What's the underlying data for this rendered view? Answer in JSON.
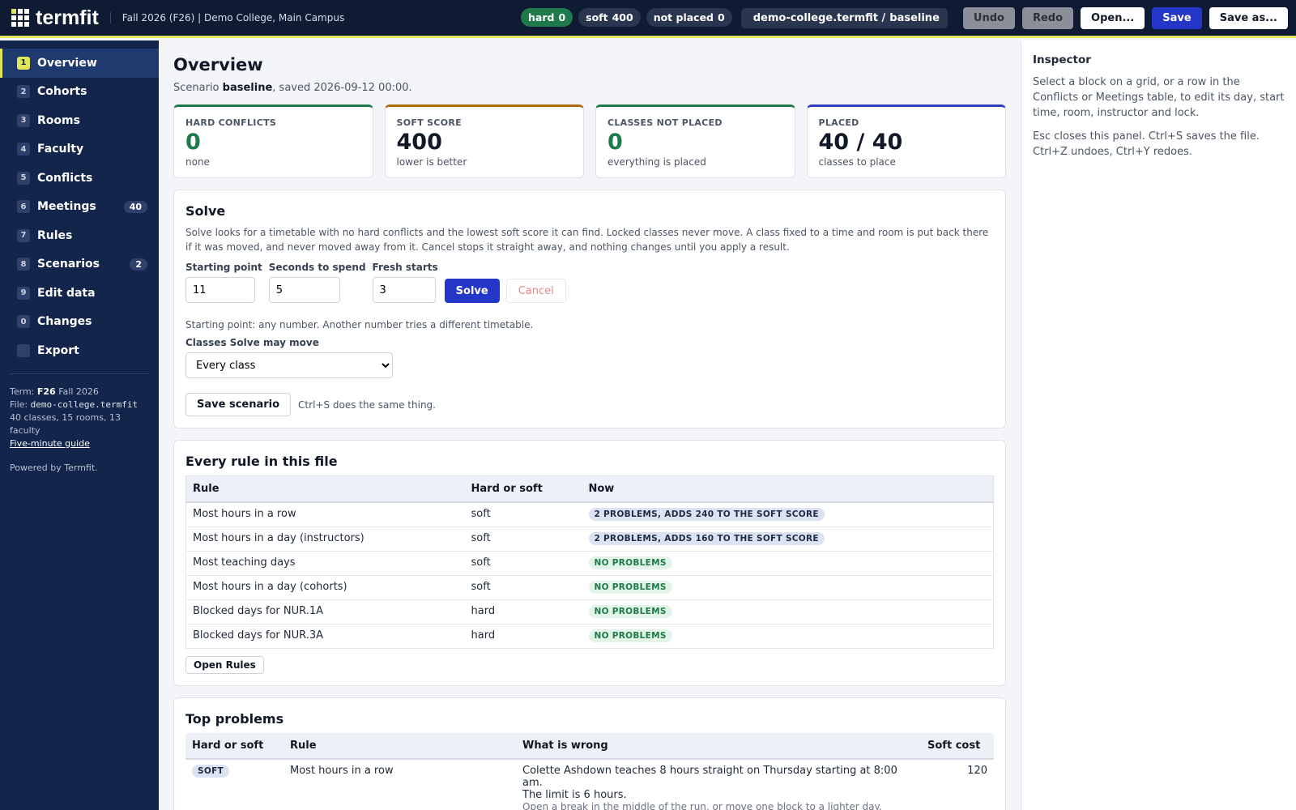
{
  "header": {
    "brand": "termfit",
    "term": "Fall 2026 (F26) | Demo College, Main Campus",
    "pills": [
      {
        "label": "hard",
        "value": "0",
        "color": "#1e7a4a"
      },
      {
        "label": "soft",
        "value": "400",
        "color": "#2a3550"
      },
      {
        "label": "not placed",
        "value": "0",
        "color": "#2a3550"
      }
    ],
    "file": "demo-college.termfit /",
    "scenario": "baseline",
    "buttons": [
      {
        "label": "Undo",
        "bg": "#8a8f99",
        "fg": "#2b2f38"
      },
      {
        "label": "Redo",
        "bg": "#8a8f99",
        "fg": "#2b2f38"
      },
      {
        "label": "Open...",
        "bg": "#ffffff",
        "fg": "#111827"
      },
      {
        "label": "Save",
        "bg": "#2437c9",
        "fg": "#ffffff"
      },
      {
        "label": "Save as...",
        "bg": "#ffffff",
        "fg": "#111827"
      }
    ]
  },
  "sidebar": {
    "nav": [
      {
        "key": "1",
        "label": "Overview",
        "active": true
      },
      {
        "key": "2",
        "label": "Cohorts"
      },
      {
        "key": "3",
        "label": "Rooms"
      },
      {
        "key": "4",
        "label": "Faculty"
      },
      {
        "key": "5",
        "label": "Conflicts"
      },
      {
        "key": "6",
        "label": "Meetings",
        "count": "40"
      },
      {
        "key": "7",
        "label": "Rules"
      },
      {
        "key": "8",
        "label": "Scenarios",
        "count": "2"
      },
      {
        "key": "9",
        "label": "Edit data"
      },
      {
        "key": "0",
        "label": "Changes"
      },
      {
        "label": "Export"
      }
    ],
    "term": [
      "Term:",
      "F26",
      "Fall 2026"
    ],
    "file": [
      "File:",
      "demo-college.termfit"
    ],
    "summary": "40 classes, 15 rooms, 13 faculty",
    "guide": "Five-minute guide",
    "powered": "Powered by Termfit."
  },
  "main": {
    "title": "Overview",
    "subtitle": [
      "Scenario ",
      "baseline",
      ", saved 2026-09-12 00:00."
    ],
    "cards": [
      {
        "label": "HARD CONFLICTS",
        "value": "0",
        "note": "none",
        "color": "#1e7a4a",
        "value_color": "#1e7a4a"
      },
      {
        "label": "SOFT SCORE",
        "value": "400",
        "note": "lower is better",
        "color": "#b06a10",
        "value_color": "#111827"
      },
      {
        "label": "CLASSES NOT PLACED",
        "value": "0",
        "note": "everything is placed",
        "color": "#1e7a4a",
        "value_color": "#1e7a4a"
      },
      {
        "label": "PLACED",
        "value": "40 / 40",
        "note": "classes to place",
        "color": "#2a3fbf",
        "value_color": "#111827"
      }
    ],
    "solve": {
      "title": "Solve",
      "description": "Solve looks for a timetable with no hard conflicts and the lowest soft score it can find. Locked classes never move. A class fixed to a time and room is put back there if it was moved, and never moved away from it. Cancel stops it straight away, and nothing changes until you apply a result.",
      "fields": [
        {
          "label": "Starting point",
          "value": "11"
        },
        {
          "label": "Seconds to spend",
          "value": "5"
        },
        {
          "label": "Fresh starts",
          "value": "3"
        }
      ],
      "solve_button": "Solve",
      "cancel_button": "Cancel",
      "hint": "Starting point: any number. Another number tries a different timetable.",
      "move_label": "Classes Solve may move",
      "move_option": "Every class",
      "save_button": "Save scenario",
      "save_hint": "Ctrl+S does the same thing."
    },
    "rules": {
      "title": "Every rule in this file",
      "columns": [
        "Rule",
        "Hard or soft",
        "Now"
      ],
      "rows": [
        {
          "rule": "Most hours in a row",
          "kind": "soft",
          "now": "2 PROBLEMS, ADDS 240 TO THE SOFT SCORE",
          "bg": "#dde2f2",
          "fg": "#1f2a44"
        },
        {
          "rule": "Most hours in a day (instructors)",
          "kind": "soft",
          "now": "2 PROBLEMS, ADDS 160 TO THE SOFT SCORE",
          "bg": "#dde2f2",
          "fg": "#1f2a44"
        },
        {
          "rule": "Most teaching days",
          "kind": "soft",
          "now": "NO PROBLEMS",
          "bg": "#e2f3e8",
          "fg": "#1e7a4a"
        },
        {
          "rule": "Most hours in a day (cohorts)",
          "kind": "soft",
          "now": "NO PROBLEMS",
          "bg": "#e2f3e8",
          "fg": "#1e7a4a"
        },
        {
          "rule": "Blocked days for NUR.1A",
          "kind": "hard",
          "now": "NO PROBLEMS",
          "bg": "#e2f3e8",
          "fg": "#1e7a4a"
        },
        {
          "rule": "Blocked days for NUR.3A",
          "kind": "hard",
          "now": "NO PROBLEMS",
          "bg": "#e2f3e8",
          "fg": "#1e7a4a"
        }
      ],
      "button": "Open Rules"
    },
    "problems": {
      "title": "Top problems",
      "columns": [
        "Hard or soft",
        "Rule",
        "What is wrong",
        "Soft cost"
      ],
      "rows": [
        {
          "kind": "SOFT",
          "rule": "Most hours in a row",
          "what": [
            "Colette Ashdown teaches 8 hours straight on Thursday starting at 8:00 am.",
            "The limit is 6 hours."
          ],
          "fix": "Open a break in the middle of the run, or move one block to a lighter day.",
          "cost": "120"
        }
      ]
    }
  },
  "inspector": {
    "title": "Inspector",
    "paragraphs": [
      "Select a block on a grid, or a row in the Conflicts or Meetings table, to edit its day, start time, room, instructor and lock.",
      "Esc closes this panel. Ctrl+S saves the file. Ctrl+Z undoes, Ctrl+Y redoes."
    ]
  }
}
